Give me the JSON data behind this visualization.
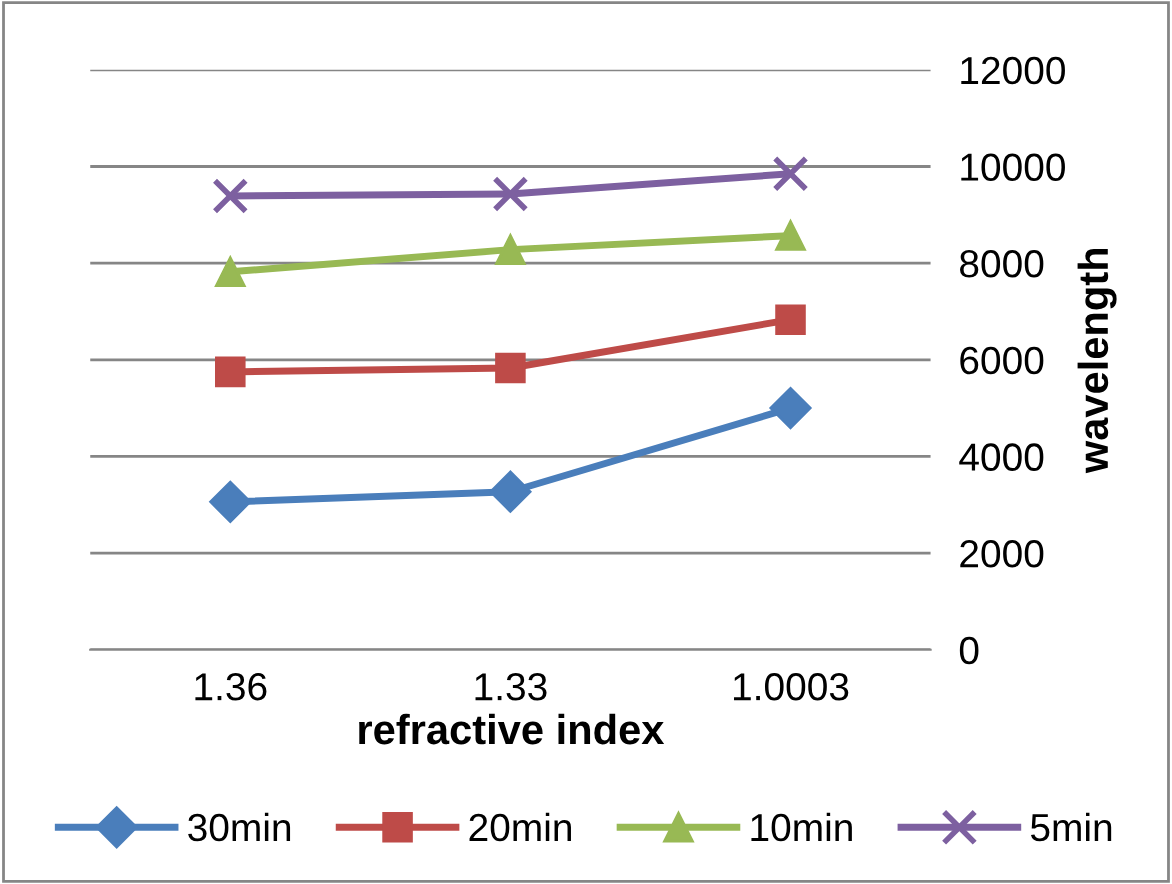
{
  "chart_data": {
    "type": "line",
    "xlabel": "refractive index",
    "ylabel": "wavelength",
    "categories": [
      "1.36",
      "1.33",
      "1.0003"
    ],
    "series": [
      {
        "name": "30min",
        "color": "#4a7ebb",
        "values": [
          3060,
          3270,
          5000
        ],
        "marker": "diamond"
      },
      {
        "name": "20min",
        "color": "#be4b48",
        "values": [
          5750,
          5830,
          6830
        ],
        "marker": "square"
      },
      {
        "name": "10min",
        "color": "#98b954",
        "values": [
          7820,
          8280,
          8570
        ],
        "marker": "triangle"
      },
      {
        "name": "5min",
        "color": "#7d60a0",
        "values": [
          9390,
          9430,
          9850
        ],
        "marker": "cross"
      }
    ],
    "ylim": [
      0,
      12000
    ],
    "yticks": [
      0,
      2000,
      4000,
      6000,
      8000,
      10000,
      12000
    ],
    "grid": "y",
    "legend": "bottom",
    "line_style": "solid"
  }
}
